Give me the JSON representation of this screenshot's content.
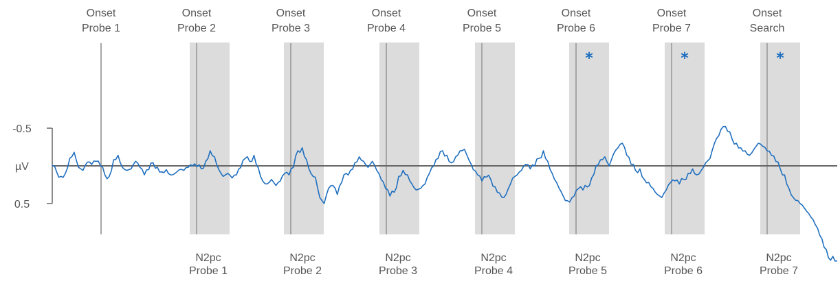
{
  "colors": {
    "line": "#1f6fbf",
    "window": "#dcdcdc",
    "marker": "#a6a6a6",
    "axis": "#666666",
    "star": "#1f6fbf"
  },
  "chart_data": {
    "type": "line",
    "title": "",
    "ylabel": "µV",
    "y_axis_inverted": true,
    "ylim": [
      1.26,
      -1.26
    ],
    "grid": false,
    "y_ticks": [
      {
        "value": -0.5,
        "label": "-0.5"
      },
      {
        "value": 0,
        "label": "µV"
      },
      {
        "value": 0.5,
        "label": "0.5"
      }
    ],
    "onsets": [
      {
        "line1": "Onset",
        "line2": "Probe 1"
      },
      {
        "line1": "Onset",
        "line2": "Probe 2"
      },
      {
        "line1": "Onset",
        "line2": "Probe 3"
      },
      {
        "line1": "Onset",
        "line2": "Probe 4"
      },
      {
        "line1": "Onset",
        "line2": "Probe 5"
      },
      {
        "line1": "Onset",
        "line2": "Probe 6"
      },
      {
        "line1": "Onset",
        "line2": "Probe 7"
      },
      {
        "line1": "Onset",
        "line2": "Search"
      }
    ],
    "n2pc_windows": [
      {
        "line1": "N2pc",
        "line2": "Probe 1",
        "significant": false
      },
      {
        "line1": "N2pc",
        "line2": "Probe 2",
        "significant": false
      },
      {
        "line1": "N2pc",
        "line2": "Probe 3",
        "significant": false
      },
      {
        "line1": "N2pc",
        "line2": "Probe 4",
        "significant": false
      },
      {
        "line1": "N2pc",
        "line2": "Probe 5",
        "significant": true
      },
      {
        "line1": "N2pc",
        "line2": "Probe 6",
        "significant": true
      },
      {
        "line1": "N2pc",
        "line2": "Probe 7",
        "significant": true
      }
    ],
    "significance_marker": "*",
    "series": [
      {
        "values": [
          0.0,
          0.08,
          0.14,
          0.1,
          -0.1,
          -0.18,
          0.02,
          0.06,
          -0.05,
          -0.02,
          -0.06,
          0.0,
          0.12,
          0.14,
          -0.08,
          -0.14,
          0.02,
          0.06,
          0.04,
          -0.06,
          0.02,
          0.12,
          0.05,
          -0.04,
          0.02,
          0.08,
          0.05,
          0.12,
          0.1,
          0.05,
          0.06,
          0.02,
          0.0,
          0.01,
          0.04,
          -0.06,
          -0.2,
          -0.12,
          0.05,
          0.14,
          0.1,
          0.16,
          0.12,
          0.02,
          -0.1,
          -0.06,
          -0.14,
          0.03,
          0.2,
          0.24,
          0.18,
          0.26,
          0.2,
          0.1,
          0.12,
          0.02,
          -0.2,
          -0.24,
          -0.08,
          0.1,
          0.15,
          0.42,
          0.5,
          0.3,
          0.26,
          0.38,
          0.22,
          0.1,
          0.06,
          -0.04,
          -0.12,
          -0.06,
          0.02,
          -0.06,
          0.06,
          0.18,
          0.3,
          0.4,
          0.35,
          0.14,
          0.06,
          0.12,
          0.24,
          0.32,
          0.3,
          0.24,
          0.1,
          0.0,
          -0.1,
          -0.2,
          -0.14,
          -0.04,
          -0.12,
          -0.2,
          -0.22,
          -0.08,
          0.05,
          0.12,
          0.2,
          0.15,
          0.18,
          0.28,
          0.36,
          0.42,
          0.3,
          0.16,
          0.12,
          0.06,
          -0.02,
          0.04,
          0.0,
          -0.1,
          -0.2,
          -0.06,
          0.1,
          0.22,
          0.34,
          0.46,
          0.48,
          0.4,
          0.3,
          0.32,
          0.28,
          0.16,
          0.0,
          -0.08,
          -0.12,
          0.0,
          -0.16,
          -0.24,
          -0.3,
          -0.14,
          -0.02,
          0.06,
          0.04,
          0.18,
          0.22,
          0.3,
          0.38,
          0.42,
          0.32,
          0.22,
          0.2,
          0.24,
          0.18,
          0.1,
          0.04,
          0.12,
          0.06,
          -0.04,
          -0.1,
          -0.3,
          -0.4,
          -0.52,
          -0.46,
          -0.36,
          -0.3,
          -0.24,
          -0.2,
          -0.14,
          -0.22,
          -0.3,
          -0.26,
          -0.2,
          -0.14,
          -0.06,
          0.04,
          0.12,
          0.3,
          0.42,
          0.46,
          0.52,
          0.6,
          0.68,
          0.78,
          0.92,
          1.08,
          1.22,
          1.2,
          1.26
        ]
      }
    ]
  }
}
